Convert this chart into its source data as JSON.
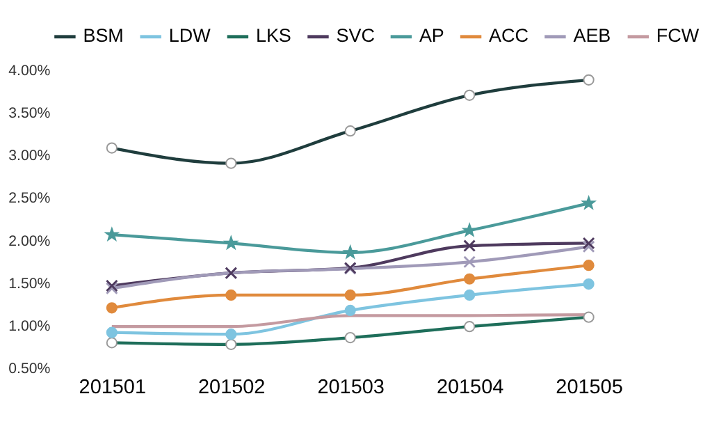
{
  "chart_data": {
    "type": "line",
    "categories": [
      "201501",
      "201502",
      "201503",
      "201504",
      "201505"
    ],
    "series": [
      {
        "name": "BSM",
        "color": "#1f3d3d",
        "marker": "circle",
        "values": [
          3.09,
          2.91,
          3.29,
          3.71,
          3.89
        ]
      },
      {
        "name": "LDW",
        "color": "#7ec4e0",
        "marker": "circle",
        "values": [
          0.92,
          0.9,
          1.18,
          1.36,
          1.49
        ]
      },
      {
        "name": "LKS",
        "color": "#1e6e5a",
        "marker": "circle",
        "values": [
          0.8,
          0.78,
          0.86,
          0.99,
          1.1
        ]
      },
      {
        "name": "SVC",
        "color": "#4e3a5e",
        "marker": "cross",
        "values": [
          1.47,
          1.62,
          1.68,
          1.94,
          1.97
        ]
      },
      {
        "name": "AP",
        "color": "#4a9a9a",
        "marker": "star",
        "values": [
          2.07,
          1.97,
          1.86,
          2.12,
          2.44
        ]
      },
      {
        "name": "ACC",
        "color": "#e08a3c",
        "marker": "circle",
        "values": [
          1.21,
          1.36,
          1.36,
          1.55,
          1.71
        ]
      },
      {
        "name": "AEB",
        "color": "#a09ab8",
        "marker": "cross",
        "values": [
          1.44,
          1.62,
          1.67,
          1.75,
          1.93
        ]
      },
      {
        "name": "FCW",
        "color": "#c49aa0",
        "marker": "none",
        "values": [
          0.99,
          0.99,
          1.12,
          1.12,
          1.13
        ]
      }
    ],
    "ylim": [
      0.5,
      4.0
    ],
    "yticks": [
      {
        "value": 0.5,
        "label": "0.50%"
      },
      {
        "value": 1.0,
        "label": "1.00%"
      },
      {
        "value": 1.5,
        "label": "1.50%"
      },
      {
        "value": 2.0,
        "label": "2.00%"
      },
      {
        "value": 2.5,
        "label": "2.50%"
      },
      {
        "value": 3.0,
        "label": "3.00%"
      },
      {
        "value": 3.5,
        "label": "3.50%"
      },
      {
        "value": 4.0,
        "label": "4.00%"
      }
    ],
    "grid": false,
    "legend": "top"
  }
}
